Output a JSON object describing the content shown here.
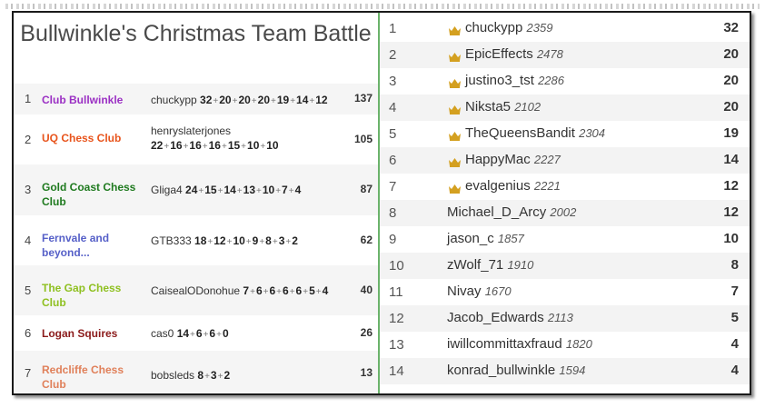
{
  "title": "Bullwinkle's Christmas Team Battle",
  "teams": [
    {
      "rank": "1",
      "name": "Club Bullwinkle",
      "color": "#9b30c4",
      "player": "chuckypp",
      "scores": [
        "32",
        "20",
        "20",
        "20",
        "19",
        "14",
        "12"
      ],
      "total": "137"
    },
    {
      "rank": "2",
      "name": "UQ Chess Club",
      "color": "#e8541c",
      "player": "henryslaterjones",
      "scores": [
        "22",
        "16",
        "16",
        "16",
        "15",
        "10",
        "10"
      ],
      "total": "105"
    },
    {
      "rank": "3",
      "name": "Gold Coast Chess Club",
      "color": "#1f7a1f",
      "player": "Gliga4",
      "scores": [
        "24",
        "15",
        "14",
        "13",
        "10",
        "7",
        "4"
      ],
      "total": "87"
    },
    {
      "rank": "4",
      "name": "Fernvale and beyond...",
      "color": "#5660c8",
      "player": "GTB333",
      "scores": [
        "18",
        "12",
        "10",
        "9",
        "8",
        "3",
        "2"
      ],
      "total": "62"
    },
    {
      "rank": "5",
      "name": "The Gap Chess Club",
      "color": "#8fc021",
      "player": "CaisealODonohue",
      "scores": [
        "7",
        "6",
        "6",
        "6",
        "6",
        "5",
        "4"
      ],
      "total": "40"
    },
    {
      "rank": "6",
      "name": "Logan Squires",
      "color": "#8b1a1a",
      "player": "cas0",
      "scores": [
        "14",
        "6",
        "6",
        "0"
      ],
      "total": "26"
    },
    {
      "rank": "7",
      "name": "Redcliffe Chess Club",
      "color": "#e0805a",
      "player": "bobsleds",
      "scores": [
        "8",
        "3",
        "2"
      ],
      "total": "13"
    }
  ],
  "players": [
    {
      "rank": "1",
      "name": "chuckypp",
      "rating": "2359",
      "score": "32",
      "crown": true
    },
    {
      "rank": "2",
      "name": "EpicEffects",
      "rating": "2478",
      "score": "20",
      "crown": true
    },
    {
      "rank": "3",
      "name": "justino3_tst",
      "rating": "2286",
      "score": "20",
      "crown": true
    },
    {
      "rank": "4",
      "name": "Niksta5",
      "rating": "2102",
      "score": "20",
      "crown": true
    },
    {
      "rank": "5",
      "name": "TheQueensBandit",
      "rating": "2304",
      "score": "19",
      "crown": true
    },
    {
      "rank": "6",
      "name": "HappyMac",
      "rating": "2227",
      "score": "14",
      "crown": true
    },
    {
      "rank": "7",
      "name": "evalgenius",
      "rating": "2221",
      "score": "12",
      "crown": true
    },
    {
      "rank": "8",
      "name": "Michael_D_Arcy",
      "rating": "2002",
      "score": "12",
      "crown": false
    },
    {
      "rank": "9",
      "name": "jason_c",
      "rating": "1857",
      "score": "10",
      "crown": false
    },
    {
      "rank": "10",
      "name": "zWolf_71",
      "rating": "1910",
      "score": "8",
      "crown": false
    },
    {
      "rank": "11",
      "name": "Nivay",
      "rating": "1670",
      "score": "7",
      "crown": false
    },
    {
      "rank": "12",
      "name": "Jacob_Edwards",
      "rating": "2113",
      "score": "5",
      "crown": false
    },
    {
      "rank": "13",
      "name": "iwillcommittaxfraud",
      "rating": "1820",
      "score": "4",
      "crown": false
    },
    {
      "rank": "14",
      "name": "konrad_bullwinkle",
      "rating": "1594",
      "score": "4",
      "crown": false
    }
  ],
  "icons": {
    "crown": "crown-icon",
    "crown_color": "#d4a020"
  }
}
